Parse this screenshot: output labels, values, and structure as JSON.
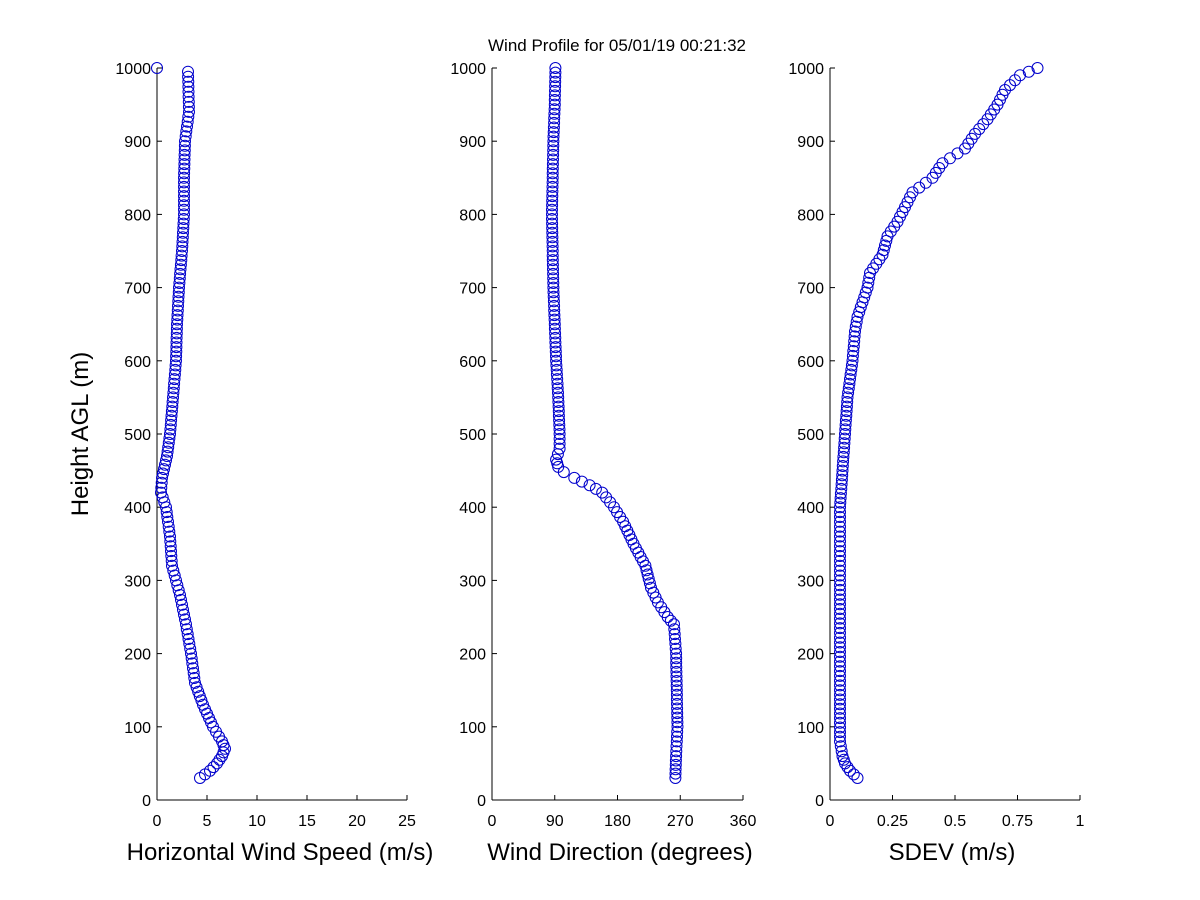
{
  "title": "Wind Profile for  05/01/19 00:21:32",
  "marker_color": "#0000cc",
  "chart_data": [
    {
      "type": "scatter",
      "xlabel": "Horizontal Wind Speed (m/s)",
      "ylabel": "Height AGL (m)",
      "xlim": [
        0,
        25
      ],
      "ylim": [
        0,
        1000
      ],
      "xticks": [
        0,
        5,
        10,
        15,
        20,
        25
      ],
      "xtick_labels": [
        "0",
        "5",
        "10",
        "15",
        "20",
        "25"
      ],
      "yticks": [
        0,
        100,
        200,
        300,
        400,
        500,
        600,
        700,
        800,
        900,
        1000
      ],
      "ytick_labels": [
        "0",
        "100",
        "200",
        "300",
        "400",
        "500",
        "600",
        "700",
        "800",
        "900",
        "1000"
      ],
      "profile": [
        [
          30,
          4.3
        ],
        [
          40,
          5.3
        ],
        [
          50,
          6.0
        ],
        [
          60,
          6.5
        ],
        [
          70,
          6.8
        ],
        [
          80,
          6.5
        ],
        [
          100,
          5.6
        ],
        [
          130,
          4.6
        ],
        [
          160,
          3.8
        ],
        [
          200,
          3.4
        ],
        [
          240,
          2.9
        ],
        [
          280,
          2.3
        ],
        [
          320,
          1.5
        ],
        [
          360,
          1.3
        ],
        [
          400,
          0.9
        ],
        [
          420,
          0.4
        ],
        [
          440,
          0.5
        ],
        [
          470,
          1.0
        ],
        [
          500,
          1.3
        ],
        [
          550,
          1.6
        ],
        [
          600,
          1.9
        ],
        [
          650,
          2.0
        ],
        [
          700,
          2.2
        ],
        [
          750,
          2.5
        ],
        [
          800,
          2.7
        ],
        [
          850,
          2.7
        ],
        [
          900,
          2.8
        ],
        [
          940,
          3.2
        ],
        [
          995,
          3.1
        ]
      ],
      "outliers": [
        [
          1000,
          0.0
        ]
      ]
    },
    {
      "type": "scatter",
      "xlabel": "Wind Direction (degrees)",
      "xlim": [
        0,
        360
      ],
      "ylim": [
        0,
        1000
      ],
      "xticks": [
        0,
        90,
        180,
        270,
        360
      ],
      "xtick_labels": [
        "0",
        "90",
        "180",
        "270",
        "360"
      ],
      "yticks": [
        0,
        100,
        200,
        300,
        400,
        500,
        600,
        700,
        800,
        900,
        1000
      ],
      "ytick_labels": [
        "0",
        "100",
        "200",
        "300",
        "400",
        "500",
        "600",
        "700",
        "800",
        "900",
        "1000"
      ],
      "profile": [
        [
          30,
          263
        ],
        [
          60,
          264
        ],
        [
          100,
          266
        ],
        [
          150,
          265
        ],
        [
          200,
          264
        ],
        [
          240,
          261
        ],
        [
          250,
          252
        ],
        [
          270,
          238
        ],
        [
          290,
          228
        ],
        [
          320,
          220
        ],
        [
          350,
          203
        ],
        [
          380,
          188
        ],
        [
          400,
          175
        ],
        [
          420,
          158
        ],
        [
          430,
          140
        ],
        [
          440,
          118
        ],
        [
          448,
          103
        ],
        [
          455,
          95
        ],
        [
          465,
          92
        ],
        [
          480,
          97
        ],
        [
          500,
          97
        ],
        [
          550,
          95
        ],
        [
          600,
          92
        ],
        [
          650,
          90
        ],
        [
          700,
          88
        ],
        [
          750,
          87
        ],
        [
          800,
          86
        ],
        [
          850,
          87
        ],
        [
          900,
          88
        ],
        [
          950,
          90
        ],
        [
          1000,
          91
        ]
      ],
      "outliers": []
    },
    {
      "type": "scatter",
      "xlabel": "SDEV  (m/s)",
      "xlim": [
        0,
        1
      ],
      "ylim": [
        0,
        1000
      ],
      "xticks": [
        0,
        0.25,
        0.5,
        0.75,
        1
      ],
      "xtick_labels": [
        "0",
        "0.25",
        "0.5",
        "0.75",
        "1"
      ],
      "yticks": [
        0,
        100,
        200,
        300,
        400,
        500,
        600,
        700,
        800,
        900,
        1000
      ],
      "ytick_labels": [
        "0",
        "100",
        "200",
        "300",
        "400",
        "500",
        "600",
        "700",
        "800",
        "900",
        "1000"
      ],
      "profile": [
        [
          30,
          0.11
        ],
        [
          40,
          0.08
        ],
        [
          50,
          0.06
        ],
        [
          60,
          0.05
        ],
        [
          80,
          0.04
        ],
        [
          150,
          0.04
        ],
        [
          300,
          0.04
        ],
        [
          400,
          0.04
        ],
        [
          450,
          0.05
        ],
        [
          500,
          0.06
        ],
        [
          550,
          0.07
        ],
        [
          600,
          0.09
        ],
        [
          640,
          0.1
        ],
        [
          660,
          0.11
        ],
        [
          680,
          0.13
        ],
        [
          700,
          0.15
        ],
        [
          720,
          0.16
        ],
        [
          745,
          0.21
        ],
        [
          770,
          0.23
        ],
        [
          790,
          0.27
        ],
        [
          810,
          0.3
        ],
        [
          830,
          0.33
        ],
        [
          850,
          0.41
        ],
        [
          870,
          0.45
        ],
        [
          890,
          0.54
        ],
        [
          910,
          0.58
        ],
        [
          930,
          0.63
        ],
        [
          950,
          0.67
        ],
        [
          970,
          0.7
        ],
        [
          990,
          0.76
        ],
        [
          1000,
          0.83
        ]
      ],
      "outliers": []
    }
  ]
}
